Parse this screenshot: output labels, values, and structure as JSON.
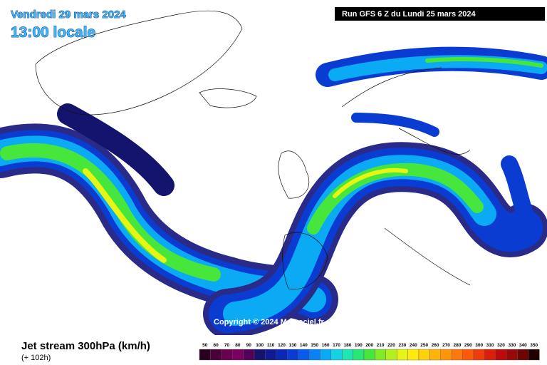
{
  "header": {
    "date": "Vendredi 29 mars 2024",
    "time": "13:00 locale",
    "run": "Run GFS 6 Z du Lundi 25 mars 2024"
  },
  "copyright": "Copyright © 2024 Meteociel.fr",
  "footer": {
    "title": "Jet stream 300hPa (km/h)",
    "subtitle": "(+ 102h)"
  },
  "legend": {
    "items": [
      {
        "label": 50,
        "color": "#2a0020"
      },
      {
        "label": 60,
        "color": "#4a0038"
      },
      {
        "label": 70,
        "color": "#6a0050"
      },
      {
        "label": 80,
        "color": "#7a0060"
      },
      {
        "label": 90,
        "color": "#55005a"
      },
      {
        "label": 100,
        "color": "#14146e"
      },
      {
        "label": 110,
        "color": "#101a96"
      },
      {
        "label": 120,
        "color": "#0a28b4"
      },
      {
        "label": 130,
        "color": "#0a3cd2"
      },
      {
        "label": 140,
        "color": "#0a5af0"
      },
      {
        "label": 150,
        "color": "#0a82f5"
      },
      {
        "label": 160,
        "color": "#0aaaf5"
      },
      {
        "label": 170,
        "color": "#14d2e6"
      },
      {
        "label": 180,
        "color": "#1ee6b4"
      },
      {
        "label": 190,
        "color": "#28e678"
      },
      {
        "label": 200,
        "color": "#46e63c"
      },
      {
        "label": 210,
        "color": "#82eb28"
      },
      {
        "label": 220,
        "color": "#b4f01e"
      },
      {
        "label": 230,
        "color": "#e6f514"
      },
      {
        "label": 240,
        "color": "#ffeb0a"
      },
      {
        "label": 250,
        "color": "#ffd20a"
      },
      {
        "label": 260,
        "color": "#ffb40a"
      },
      {
        "label": 270,
        "color": "#ff960a"
      },
      {
        "label": 280,
        "color": "#ff780a"
      },
      {
        "label": 290,
        "color": "#ff5a0a"
      },
      {
        "label": 300,
        "color": "#f03c0a"
      },
      {
        "label": 310,
        "color": "#dc1e0a"
      },
      {
        "label": 320,
        "color": "#be0a0a"
      },
      {
        "label": 330,
        "color": "#960a0a"
      },
      {
        "label": 340,
        "color": "#6e0505"
      },
      {
        "label": 350,
        "color": "#1e0000"
      }
    ]
  }
}
